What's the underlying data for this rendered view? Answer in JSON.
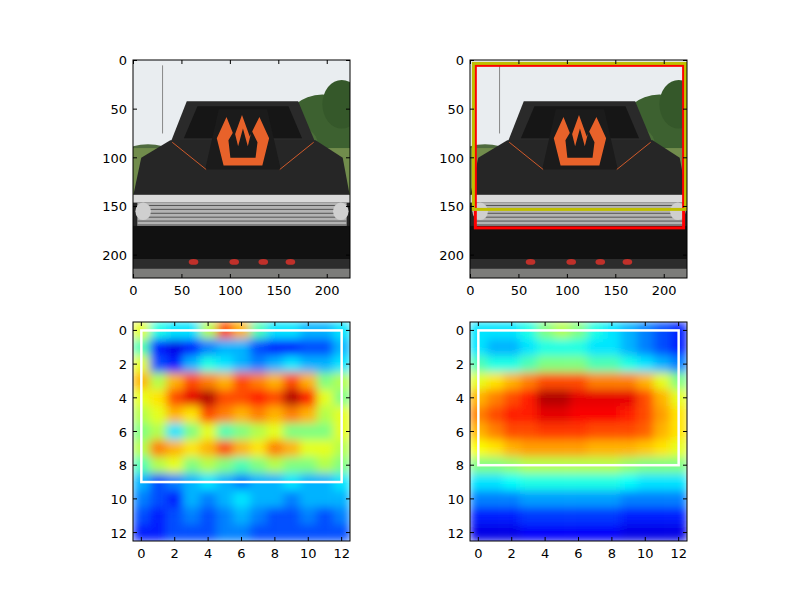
{
  "chart_data": [
    {
      "type": "image",
      "xlim": [
        -0.5,
        223.5
      ],
      "ylim": [
        223.5,
        -0.5
      ],
      "xticks": [
        0,
        50,
        100,
        150,
        200
      ],
      "yticks": [
        0,
        50,
        100,
        150,
        200
      ]
    },
    {
      "type": "image",
      "xlim": [
        -0.5,
        223.5
      ],
      "ylim": [
        223.5,
        -0.5
      ],
      "xticks": [
        0,
        50,
        100,
        150,
        200
      ],
      "yticks": [
        0,
        50,
        100,
        150,
        200
      ],
      "boxes": [
        {
          "coords": [
            5,
            5,
            220,
            172
          ],
          "color": "#ff0000"
        },
        {
          "coords": [
            3,
            3,
            222,
            153
          ],
          "color": "#bfbf00"
        }
      ]
    },
    {
      "type": "heatmap",
      "xlim": [
        -0.5,
        12.5
      ],
      "ylim": [
        12.5,
        -0.5
      ],
      "xticks": [
        0,
        2,
        4,
        6,
        8,
        10,
        12
      ],
      "yticks": [
        0,
        2,
        4,
        6,
        8,
        10,
        12
      ],
      "cells": [
        [
          0.6,
          0.4,
          0.35,
          0.35,
          0.55,
          0.8,
          0.7,
          0.45,
          0.35,
          0.35,
          0.3,
          0.3,
          0.35
        ],
        [
          0.45,
          0.15,
          0.1,
          0.15,
          0.25,
          0.3,
          0.3,
          0.2,
          0.15,
          0.15,
          0.2,
          0.2,
          0.3
        ],
        [
          0.6,
          0.2,
          0.15,
          0.3,
          0.4,
          0.35,
          0.3,
          0.25,
          0.3,
          0.35,
          0.3,
          0.3,
          0.35
        ],
        [
          0.7,
          0.55,
          0.7,
          0.8,
          0.75,
          0.7,
          0.8,
          0.75,
          0.7,
          0.8,
          0.7,
          0.5,
          0.55
        ],
        [
          0.6,
          0.65,
          0.8,
          0.9,
          0.95,
          0.8,
          0.8,
          0.85,
          0.8,
          0.95,
          0.85,
          0.6,
          0.5
        ],
        [
          0.55,
          0.6,
          0.7,
          0.65,
          0.8,
          0.75,
          0.7,
          0.75,
          0.7,
          0.75,
          0.7,
          0.55,
          0.6
        ],
        [
          0.5,
          0.55,
          0.35,
          0.5,
          0.6,
          0.45,
          0.5,
          0.55,
          0.6,
          0.5,
          0.5,
          0.5,
          0.6
        ],
        [
          0.55,
          0.75,
          0.7,
          0.65,
          0.7,
          0.8,
          0.7,
          0.65,
          0.75,
          0.7,
          0.6,
          0.6,
          0.55
        ],
        [
          0.45,
          0.55,
          0.6,
          0.5,
          0.55,
          0.5,
          0.45,
          0.5,
          0.55,
          0.5,
          0.5,
          0.55,
          0.5
        ],
        [
          0.3,
          0.2,
          0.25,
          0.3,
          0.35,
          0.3,
          0.25,
          0.3,
          0.3,
          0.35,
          0.3,
          0.3,
          0.35
        ],
        [
          0.25,
          0.2,
          0.15,
          0.3,
          0.25,
          0.3,
          0.35,
          0.3,
          0.3,
          0.25,
          0.3,
          0.3,
          0.3
        ],
        [
          0.2,
          0.15,
          0.2,
          0.25,
          0.2,
          0.25,
          0.3,
          0.25,
          0.2,
          0.2,
          0.25,
          0.2,
          0.25
        ],
        [
          0.15,
          0.15,
          0.2,
          0.2,
          0.2,
          0.25,
          0.25,
          0.2,
          0.2,
          0.2,
          0.2,
          0.2,
          0.2
        ]
      ],
      "boxes": [
        {
          "coords": [
            0,
            0,
            12,
            9
          ],
          "color": "#ffffff"
        }
      ]
    },
    {
      "type": "heatmap",
      "xlim": [
        -0.5,
        12.5
      ],
      "ylim": [
        12.5,
        -0.5
      ],
      "xticks": [
        0,
        2,
        4,
        6,
        8,
        10,
        12
      ],
      "yticks": [
        0,
        2,
        4,
        6,
        8,
        10,
        12
      ],
      "cells": [
        [
          0.35,
          0.35,
          0.35,
          0.4,
          0.5,
          0.55,
          0.5,
          0.4,
          0.35,
          0.3,
          0.25,
          0.2,
          0.15
        ],
        [
          0.35,
          0.3,
          0.3,
          0.35,
          0.4,
          0.4,
          0.4,
          0.35,
          0.35,
          0.3,
          0.25,
          0.2,
          0.15
        ],
        [
          0.45,
          0.4,
          0.4,
          0.45,
          0.5,
          0.5,
          0.5,
          0.45,
          0.45,
          0.4,
          0.35,
          0.3,
          0.25
        ],
        [
          0.6,
          0.65,
          0.7,
          0.75,
          0.8,
          0.8,
          0.8,
          0.75,
          0.75,
          0.75,
          0.7,
          0.6,
          0.5
        ],
        [
          0.7,
          0.75,
          0.8,
          0.85,
          0.95,
          0.95,
          0.9,
          0.9,
          0.9,
          0.9,
          0.8,
          0.7,
          0.6
        ],
        [
          0.75,
          0.8,
          0.85,
          0.85,
          0.9,
          0.9,
          0.88,
          0.88,
          0.88,
          0.85,
          0.8,
          0.72,
          0.65
        ],
        [
          0.7,
          0.75,
          0.8,
          0.8,
          0.82,
          0.82,
          0.82,
          0.8,
          0.8,
          0.8,
          0.78,
          0.7,
          0.65
        ],
        [
          0.62,
          0.65,
          0.7,
          0.72,
          0.72,
          0.72,
          0.72,
          0.7,
          0.7,
          0.7,
          0.68,
          0.65,
          0.6
        ],
        [
          0.5,
          0.5,
          0.52,
          0.55,
          0.55,
          0.55,
          0.55,
          0.55,
          0.55,
          0.52,
          0.5,
          0.5,
          0.5
        ],
        [
          0.35,
          0.35,
          0.38,
          0.4,
          0.4,
          0.4,
          0.4,
          0.4,
          0.4,
          0.38,
          0.35,
          0.35,
          0.35
        ],
        [
          0.25,
          0.25,
          0.25,
          0.28,
          0.28,
          0.28,
          0.28,
          0.28,
          0.28,
          0.25,
          0.25,
          0.25,
          0.25
        ],
        [
          0.15,
          0.15,
          0.15,
          0.18,
          0.18,
          0.18,
          0.18,
          0.18,
          0.18,
          0.15,
          0.15,
          0.15,
          0.15
        ],
        [
          0.1,
          0.1,
          0.1,
          0.12,
          0.12,
          0.12,
          0.12,
          0.12,
          0.12,
          0.1,
          0.1,
          0.1,
          0.1
        ]
      ],
      "boxes": [
        {
          "coords": [
            0,
            0,
            12,
            8
          ],
          "color": "#ffffff"
        }
      ]
    }
  ]
}
